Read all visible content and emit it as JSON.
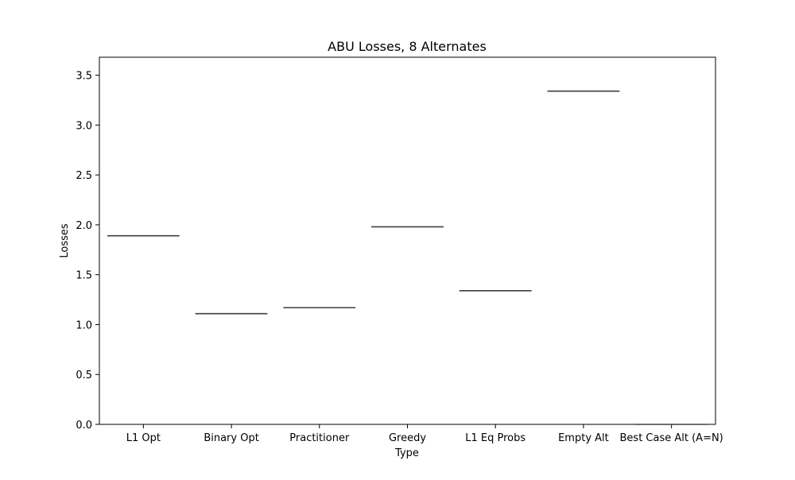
{
  "chart_data": {
    "type": "box",
    "title": "ABU Losses, 8 Alternates",
    "xlabel": "Type",
    "ylabel": "Losses",
    "categories": [
      "L1 Opt",
      "Binary Opt",
      "Practitioner",
      "Greedy",
      "L1 Eq Probs",
      "Empty Alt",
      "Best Case Alt (A=N)"
    ],
    "values": [
      1.89,
      1.11,
      1.17,
      1.98,
      1.34,
      3.34,
      0.0
    ],
    "ylim": [
      0,
      3.68
    ],
    "yticks": [
      0.0,
      0.5,
      1.0,
      1.5,
      2.0,
      2.5,
      3.0,
      3.5
    ],
    "ytick_labels": [
      "0.0",
      "0.5",
      "1.0",
      "1.5",
      "2.0",
      "2.5",
      "3.0",
      "3.5"
    ],
    "grid": false,
    "line_color": "#3f3f3f"
  }
}
